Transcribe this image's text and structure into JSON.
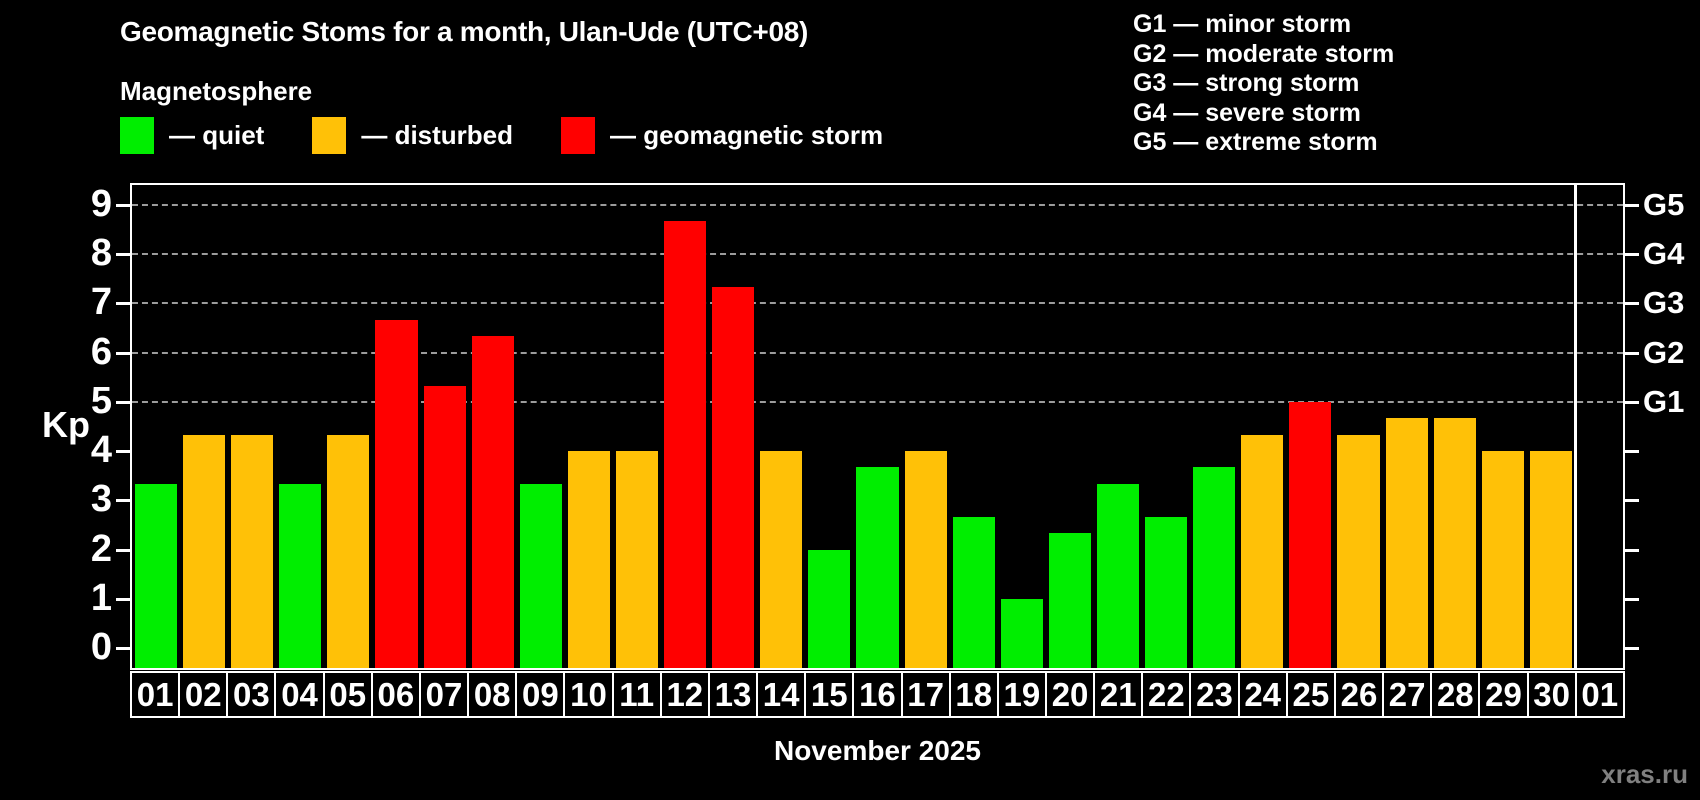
{
  "header": {
    "title": "Geomagnetic Stoms for a month, Ulan-Ude (UTC+08)",
    "subtitle": "Magnetosphere"
  },
  "legend": {
    "items": [
      {
        "status": "quiet",
        "label": "— quiet",
        "color": "#00ee00"
      },
      {
        "status": "disturbed",
        "label": "— disturbed",
        "color": "#ffc107"
      },
      {
        "status": "storm",
        "label": "— geomagnetic storm",
        "color": "#ff0000"
      }
    ]
  },
  "storm_scale_legend": {
    "items": [
      {
        "level": "G1",
        "label": "G1 — minor storm"
      },
      {
        "level": "G2",
        "label": "G2 — moderate storm"
      },
      {
        "level": "G3",
        "label": "G3 — strong storm"
      },
      {
        "level": "G4",
        "label": "G4 — severe storm"
      },
      {
        "level": "G5",
        "label": "G5 — extreme storm"
      }
    ]
  },
  "chart_data": {
    "type": "bar",
    "title": "Geomagnetic Stoms for a month, Ulan-Ude (UTC+08)",
    "ylabel": "Kp",
    "xlabel": "November 2025",
    "ylim": [
      -0.4,
      9.4
    ],
    "yticks": [
      0,
      1,
      2,
      3,
      4,
      5,
      6,
      7,
      8,
      9
    ],
    "gridlines": [
      5,
      6,
      7,
      8,
      9
    ],
    "grid_style": "dashed",
    "legend_position": "top-left",
    "right_axis": [
      {
        "value": 5,
        "label": "G1"
      },
      {
        "value": 6,
        "label": "G2"
      },
      {
        "value": 7,
        "label": "G3"
      },
      {
        "value": 8,
        "label": "G4"
      },
      {
        "value": 9,
        "label": "G5"
      }
    ],
    "colors": {
      "quiet": "#00ee00",
      "disturbed": "#ffc107",
      "storm": "#ff0000"
    },
    "month_separator_index": 30,
    "days": [
      {
        "date": "01",
        "kp": 3.33,
        "status": "quiet"
      },
      {
        "date": "02",
        "kp": 4.33,
        "status": "disturbed"
      },
      {
        "date": "03",
        "kp": 4.33,
        "status": "disturbed"
      },
      {
        "date": "04",
        "kp": 3.33,
        "status": "quiet"
      },
      {
        "date": "05",
        "kp": 4.33,
        "status": "disturbed"
      },
      {
        "date": "06",
        "kp": 6.67,
        "status": "storm"
      },
      {
        "date": "07",
        "kp": 5.33,
        "status": "storm"
      },
      {
        "date": "08",
        "kp": 6.33,
        "status": "storm"
      },
      {
        "date": "09",
        "kp": 3.33,
        "status": "quiet"
      },
      {
        "date": "10",
        "kp": 4.0,
        "status": "disturbed"
      },
      {
        "date": "11",
        "kp": 4.0,
        "status": "disturbed"
      },
      {
        "date": "12",
        "kp": 8.67,
        "status": "storm"
      },
      {
        "date": "13",
        "kp": 7.33,
        "status": "storm"
      },
      {
        "date": "14",
        "kp": 4.0,
        "status": "disturbed"
      },
      {
        "date": "15",
        "kp": 2.0,
        "status": "quiet"
      },
      {
        "date": "16",
        "kp": 3.67,
        "status": "quiet"
      },
      {
        "date": "17",
        "kp": 4.0,
        "status": "disturbed"
      },
      {
        "date": "18",
        "kp": 2.67,
        "status": "quiet"
      },
      {
        "date": "19",
        "kp": 1.0,
        "status": "quiet"
      },
      {
        "date": "20",
        "kp": 2.33,
        "status": "quiet"
      },
      {
        "date": "21",
        "kp": 3.33,
        "status": "quiet"
      },
      {
        "date": "22",
        "kp": 2.67,
        "status": "quiet"
      },
      {
        "date": "23",
        "kp": 3.67,
        "status": "quiet"
      },
      {
        "date": "24",
        "kp": 4.33,
        "status": "disturbed"
      },
      {
        "date": "25",
        "kp": 5.0,
        "status": "storm"
      },
      {
        "date": "26",
        "kp": 4.33,
        "status": "disturbed"
      },
      {
        "date": "27",
        "kp": 4.67,
        "status": "disturbed"
      },
      {
        "date": "28",
        "kp": 4.67,
        "status": "disturbed"
      },
      {
        "date": "29",
        "kp": 4.0,
        "status": "disturbed"
      },
      {
        "date": "30",
        "kp": 4.0,
        "status": "disturbed"
      },
      {
        "date": "01",
        "kp": null,
        "status": null
      }
    ]
  },
  "footer": {
    "xaxis_title": "November 2025",
    "watermark": "xras.ru"
  }
}
